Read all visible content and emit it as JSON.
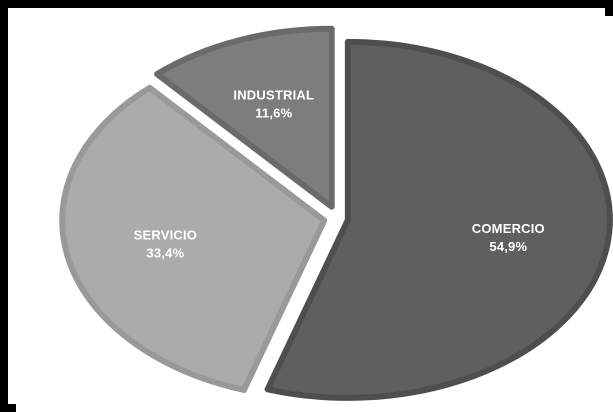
{
  "chart_data": {
    "type": "pie",
    "categories": [
      "COMERCIO",
      "SERVICIO",
      "INDUSTRIAL"
    ],
    "values": [
      54.9,
      33.4,
      11.6
    ],
    "labels": [
      "54,9%",
      "33,4%",
      "11,6%"
    ],
    "colors": [
      "#5f5f5f",
      "#ababab",
      "#7d7d7d"
    ],
    "border_colors": [
      "#4e4e4e",
      "#999999",
      "#6a6a6a"
    ],
    "title": "",
    "legend": "none",
    "exploded": true
  }
}
